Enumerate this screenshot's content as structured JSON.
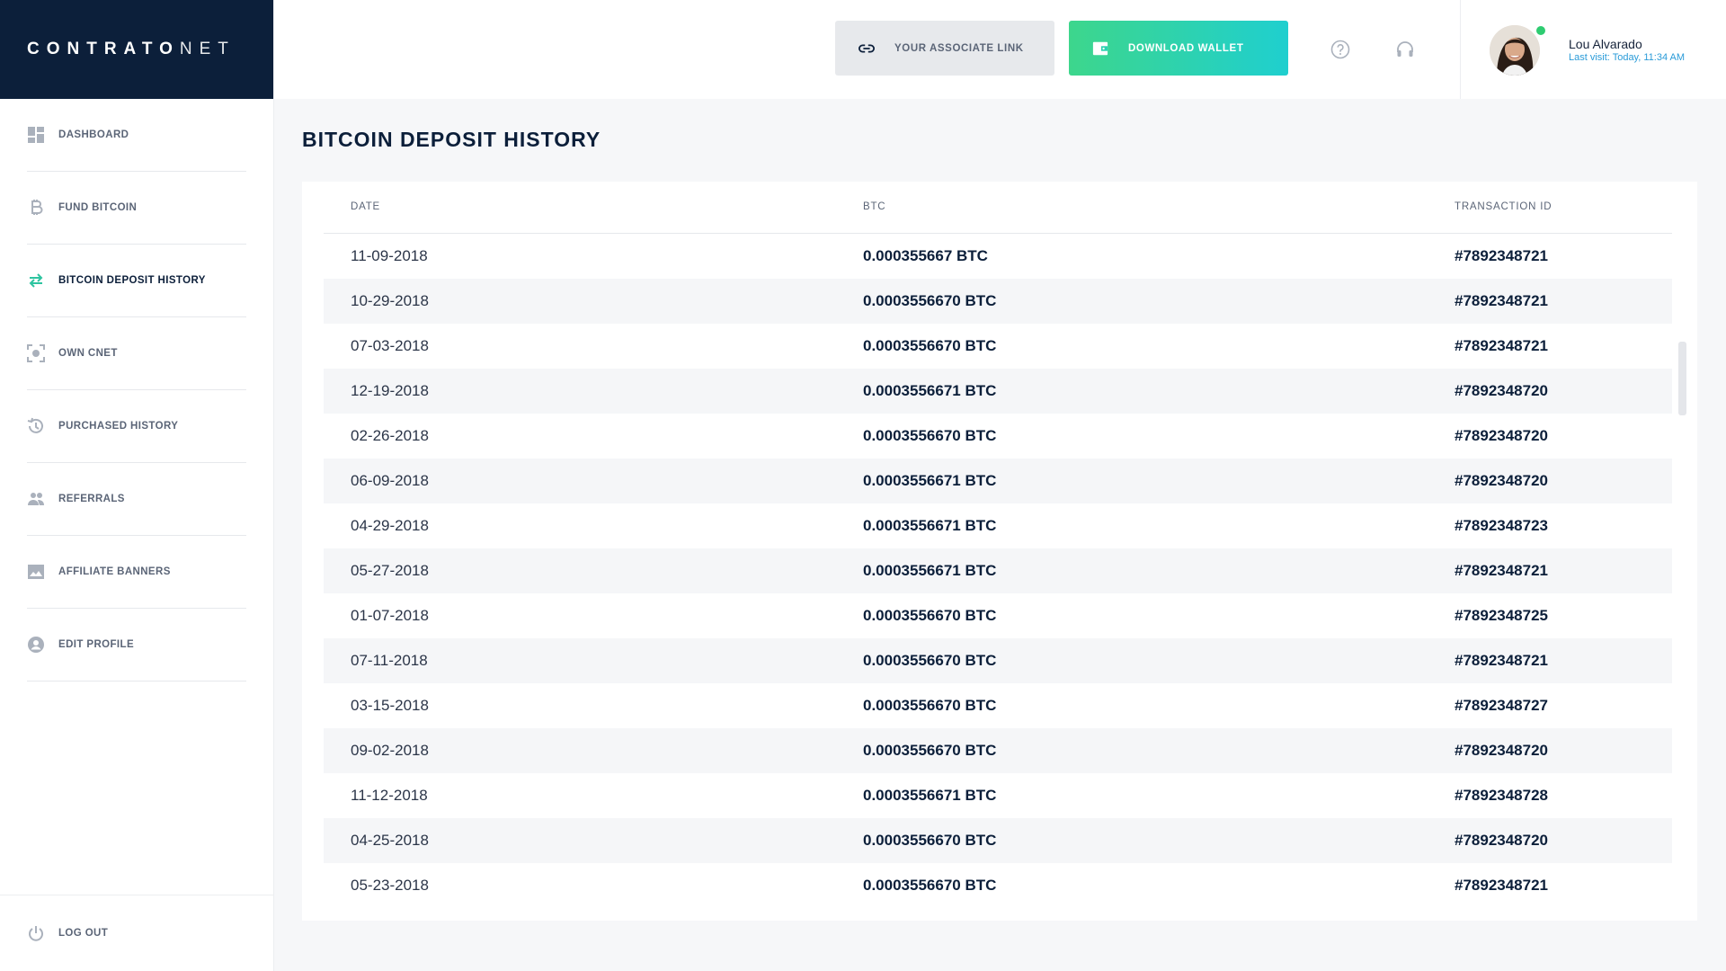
{
  "brand": {
    "bold": "CONTRATO",
    "light": "NET"
  },
  "sidebar": {
    "items": [
      {
        "label": "DASHBOARD",
        "icon": "dashboard-icon"
      },
      {
        "label": "FUND BITCOIN",
        "icon": "bitcoin-icon"
      },
      {
        "label": "BITCOIN DEPOSIT HISTORY",
        "icon": "transfer-arrows-icon",
        "active": true
      },
      {
        "label": "OWN CNET",
        "icon": "focus-target-icon"
      },
      {
        "label": "PURCHASED HISTORY",
        "icon": "history-clock-icon"
      },
      {
        "label": "REFERRALS",
        "icon": "people-icon"
      },
      {
        "label": "AFFILIATE BANNERS",
        "icon": "image-icon"
      },
      {
        "label": "EDIT PROFILE",
        "icon": "account-circle-icon"
      }
    ],
    "logout_label": "LOG OUT"
  },
  "header": {
    "associate_link_label": "YOUR ASSOCIATE LINK",
    "download_wallet_label": "DOWNLOAD WALLET",
    "user": {
      "name": "Lou Alvarado",
      "last_visit": "Last visit: Today, 11:34 AM",
      "online": true
    }
  },
  "colors": {
    "brand_navy": "#0c1f3a",
    "accent_green": "#3dd68c",
    "accent_teal": "#1fcfcf",
    "link_blue": "#2a9bd8",
    "active_icon": "#2ec4a0"
  },
  "main": {
    "title": "BITCOIN DEPOSIT HISTORY",
    "columns": {
      "date": "DATE",
      "btc": "BTC",
      "tx": "TRANSACTION ID"
    },
    "rows": [
      {
        "date": "11-09-2018",
        "btc": "0.000355667 BTC",
        "tx": "#7892348721"
      },
      {
        "date": "10-29-2018",
        "btc": "0.0003556670 BTC",
        "tx": "#7892348721"
      },
      {
        "date": "07-03-2018",
        "btc": "0.0003556670 BTC",
        "tx": "#7892348721"
      },
      {
        "date": "12-19-2018",
        "btc": "0.0003556671 BTC",
        "tx": "#7892348720"
      },
      {
        "date": "02-26-2018",
        "btc": "0.0003556670 BTC",
        "tx": "#7892348720"
      },
      {
        "date": "06-09-2018",
        "btc": "0.0003556671 BTC",
        "tx": "#7892348720"
      },
      {
        "date": "04-29-2018",
        "btc": "0.0003556671 BTC",
        "tx": "#7892348723"
      },
      {
        "date": "05-27-2018",
        "btc": "0.0003556671 BTC",
        "tx": "#7892348721"
      },
      {
        "date": "01-07-2018",
        "btc": "0.0003556670 BTC",
        "tx": "#7892348725"
      },
      {
        "date": "07-11-2018",
        "btc": "0.0003556670 BTC",
        "tx": "#7892348721"
      },
      {
        "date": "03-15-2018",
        "btc": "0.0003556670 BTC",
        "tx": "#7892348727"
      },
      {
        "date": "09-02-2018",
        "btc": "0.0003556670 BTC",
        "tx": "#7892348720"
      },
      {
        "date": "11-12-2018",
        "btc": "0.0003556671 BTC",
        "tx": "#7892348728"
      },
      {
        "date": "04-25-2018",
        "btc": "0.0003556670 BTC",
        "tx": "#7892348720"
      },
      {
        "date": "05-23-2018",
        "btc": "0.0003556670 BTC",
        "tx": "#7892348721"
      }
    ]
  }
}
